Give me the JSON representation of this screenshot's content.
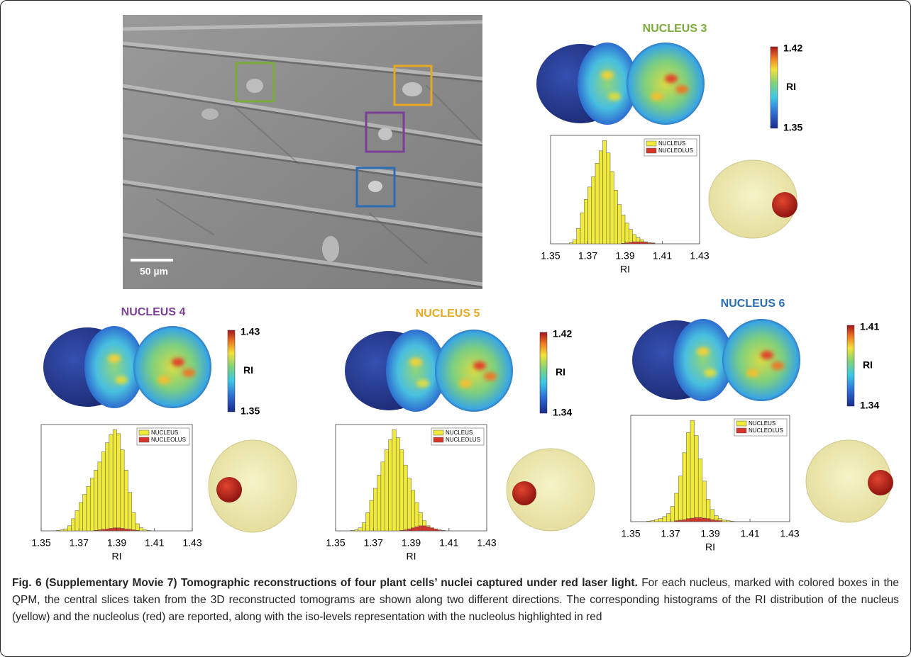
{
  "image": {
    "scale_bar": "50 µm"
  },
  "chart_data": [
    {
      "type": "histogram",
      "title": "NUCLEUS 3",
      "title_color": "#7aab3a",
      "xlabel": "RI",
      "bins": [
        1.35,
        1.352,
        1.354,
        1.356,
        1.358,
        1.36,
        1.362,
        1.364,
        1.366,
        1.368,
        1.37,
        1.372,
        1.374,
        1.376,
        1.378,
        1.38,
        1.382,
        1.384,
        1.386,
        1.388,
        1.39,
        1.392,
        1.394,
        1.396,
        1.398,
        1.4,
        1.402,
        1.404,
        1.406,
        1.408,
        1.41,
        1.412,
        1.414,
        1.416,
        1.418,
        1.42,
        1.422,
        1.424,
        1.426,
        1.428,
        1.43
      ],
      "series": [
        {
          "name": "NUCLEUS",
          "color": "#f2ea3b",
          "values": [
            0,
            0,
            0,
            0,
            0,
            1,
            4,
            15,
            30,
            43,
            55,
            65,
            78,
            90,
            100,
            88,
            70,
            52,
            38,
            28,
            20,
            14,
            9,
            6,
            4,
            2,
            1,
            1,
            0,
            0,
            0,
            0,
            0,
            0,
            0,
            0,
            0,
            0,
            0,
            0
          ]
        },
        {
          "name": "NUCLEOLUS",
          "color": "#d8352a",
          "values": [
            0,
            0,
            0,
            0,
            0,
            0,
            0,
            0,
            0,
            0,
            0,
            0,
            0,
            0,
            0,
            0,
            0,
            0,
            0,
            0.5,
            1,
            1.5,
            2,
            2,
            2,
            1.5,
            1,
            0.5,
            0,
            0,
            0,
            0,
            0,
            0,
            0,
            0,
            0,
            0,
            0,
            0
          ]
        }
      ],
      "xlim": [
        1.35,
        1.43
      ],
      "xticks": [
        1.35,
        1.37,
        1.39,
        1.41,
        1.43
      ],
      "ylim": [
        0,
        105
      ],
      "colorbar": {
        "label": "RI",
        "max": 1.42,
        "min": 1.35
      }
    },
    {
      "type": "histogram",
      "title": "NUCLEUS 4",
      "title_color": "#7b3f98",
      "xlabel": "RI",
      "bins": [
        1.35,
        1.352,
        1.354,
        1.356,
        1.358,
        1.36,
        1.362,
        1.364,
        1.366,
        1.368,
        1.37,
        1.372,
        1.374,
        1.376,
        1.378,
        1.38,
        1.382,
        1.384,
        1.386,
        1.388,
        1.39,
        1.392,
        1.394,
        1.396,
        1.398,
        1.4,
        1.402,
        1.404,
        1.406,
        1.408,
        1.41,
        1.412,
        1.414,
        1.416,
        1.418,
        1.42,
        1.422,
        1.424,
        1.426,
        1.428,
        1.43
      ],
      "series": [
        {
          "name": "NUCLEUS",
          "color": "#f2ea3b",
          "values": [
            0,
            0,
            0,
            0,
            0.5,
            1,
            2,
            5,
            12,
            20,
            28,
            36,
            44,
            52,
            60,
            68,
            78,
            87,
            95,
            100,
            96,
            80,
            60,
            38,
            18,
            7,
            3,
            1,
            0.5,
            0,
            0,
            0,
            0,
            0,
            0,
            0,
            0,
            0,
            0,
            0
          ]
        },
        {
          "name": "NUCLEOLUS",
          "color": "#d8352a",
          "values": [
            0,
            0,
            0,
            0,
            0,
            0,
            0,
            0,
            0,
            0,
            0,
            0,
            0,
            0,
            0.5,
            1,
            1.5,
            2,
            2.5,
            3,
            3,
            2.5,
            2,
            1.5,
            1,
            0.5,
            0,
            0,
            0,
            0,
            0,
            0,
            0,
            0,
            0,
            0,
            0,
            0,
            0,
            0
          ]
        }
      ],
      "xlim": [
        1.35,
        1.43
      ],
      "xticks": [
        1.35,
        1.37,
        1.39,
        1.41,
        1.43
      ],
      "ylim": [
        0,
        105
      ],
      "colorbar": {
        "label": "RI",
        "max": 1.43,
        "min": 1.35
      }
    },
    {
      "type": "histogram",
      "title": "NUCLEUS 5",
      "title_color": "#e8a821",
      "xlabel": "RI",
      "bins": [
        1.35,
        1.352,
        1.354,
        1.356,
        1.358,
        1.36,
        1.362,
        1.364,
        1.366,
        1.368,
        1.37,
        1.372,
        1.374,
        1.376,
        1.378,
        1.38,
        1.382,
        1.384,
        1.386,
        1.388,
        1.39,
        1.392,
        1.394,
        1.396,
        1.398,
        1.4,
        1.402,
        1.404,
        1.406,
        1.408,
        1.41,
        1.412,
        1.414,
        1.416,
        1.418,
        1.42,
        1.422,
        1.424,
        1.426,
        1.428,
        1.43
      ],
      "series": [
        {
          "name": "NUCLEUS",
          "color": "#f2ea3b",
          "values": [
            0,
            0,
            0,
            0,
            0.5,
            1,
            3,
            8,
            18,
            30,
            42,
            55,
            68,
            80,
            90,
            100,
            92,
            80,
            65,
            52,
            40,
            28,
            18,
            10,
            5,
            3,
            1,
            0.5,
            0,
            0,
            0,
            0,
            0,
            0,
            0,
            0,
            0,
            0,
            0,
            0
          ]
        },
        {
          "name": "NUCLEOLUS",
          "color": "#d8352a",
          "values": [
            0,
            0,
            0,
            0,
            0,
            0,
            0,
            0,
            0,
            0,
            0,
            0,
            0,
            0,
            0,
            0,
            0,
            0.5,
            1,
            2,
            3,
            4,
            5,
            5,
            4,
            3,
            2,
            1,
            0.5,
            0,
            0,
            0,
            0,
            0,
            0,
            0,
            0,
            0,
            0,
            0
          ]
        }
      ],
      "xlim": [
        1.35,
        1.43
      ],
      "xticks": [
        1.35,
        1.37,
        1.39,
        1.41,
        1.43
      ],
      "ylim": [
        0,
        105
      ],
      "colorbar": {
        "label": "RI",
        "max": 1.42,
        "min": 1.34
      }
    },
    {
      "type": "histogram",
      "title": "NUCLEUS 6",
      "title_color": "#2a6db5",
      "xlabel": "RI",
      "bins": [
        1.35,
        1.352,
        1.354,
        1.356,
        1.358,
        1.36,
        1.362,
        1.364,
        1.366,
        1.368,
        1.37,
        1.372,
        1.374,
        1.376,
        1.378,
        1.38,
        1.382,
        1.384,
        1.386,
        1.388,
        1.39,
        1.392,
        1.394,
        1.396,
        1.398,
        1.4,
        1.402,
        1.404,
        1.406,
        1.408,
        1.41,
        1.412,
        1.414,
        1.416,
        1.418,
        1.42,
        1.422,
        1.424,
        1.426,
        1.428,
        1.43
      ],
      "series": [
        {
          "name": "NUCLEUS",
          "color": "#f2ea3b",
          "values": [
            0,
            0,
            0,
            0,
            0.5,
            1,
            2,
            3,
            5,
            8,
            15,
            28,
            45,
            68,
            88,
            100,
            85,
            62,
            40,
            22,
            12,
            6,
            3,
            1.5,
            1,
            0.5,
            0,
            0,
            0,
            0,
            0,
            0,
            0,
            0,
            0,
            0,
            0,
            0,
            0,
            0
          ]
        },
        {
          "name": "NUCLEOLUS",
          "color": "#d8352a",
          "values": [
            0,
            0,
            0,
            0,
            0,
            0,
            0,
            0,
            0,
            0,
            0,
            1,
            1.5,
            2,
            3,
            3.5,
            4,
            4,
            3.5,
            3,
            2,
            1.5,
            1,
            0,
            0,
            0,
            0,
            0,
            0,
            0,
            0,
            0,
            0,
            0,
            0,
            0,
            0,
            0,
            0,
            0
          ]
        }
      ],
      "xlim": [
        1.35,
        1.43
      ],
      "xticks": [
        1.35,
        1.37,
        1.39,
        1.41,
        1.43
      ],
      "ylim": [
        0,
        105
      ],
      "colorbar": {
        "label": "RI",
        "max": 1.41,
        "min": 1.34
      }
    }
  ],
  "caption": {
    "title": "Fig. 6 (Supplementary Movie 7) Tomographic reconstructions of four plant cells’ nuclei captured under red laser light.",
    "text": "For each nucleus, marked with colored boxes in the QPM, the central slices taken from the 3D reconstructed tomograms are shown along two different directions. The corresponding histograms of the RI distribution of the nucleus (yellow) and the nucleolus (red) are reported, along with the iso-levels representation with the nucleolus highlighted in red"
  }
}
